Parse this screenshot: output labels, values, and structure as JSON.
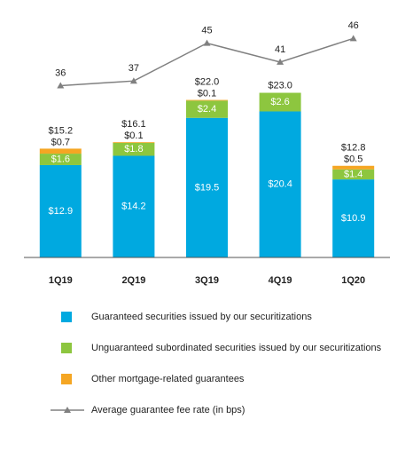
{
  "chart_data": {
    "type": "bar",
    "stacked": true,
    "categories": [
      "1Q19",
      "2Q19",
      "3Q19",
      "4Q19",
      "1Q20"
    ],
    "ylim": [
      0,
      31
    ],
    "y2lim": [
      0,
      47
    ],
    "series": [
      {
        "name": "Guaranteed securities issued by our securitizations",
        "color": "#00a9e0",
        "values": [
          12.9,
          14.2,
          19.5,
          20.4,
          10.9
        ],
        "value_labels": [
          "$12.9",
          "$14.2",
          "$19.5",
          "$20.4",
          "$10.9"
        ]
      },
      {
        "name": "Unguaranteed subordinated securities issued by our securitizations",
        "color": "#8dc63f",
        "values": [
          1.6,
          1.8,
          2.4,
          2.6,
          1.4
        ],
        "value_labels": [
          "$1.6",
          "$1.8",
          "$2.4",
          "$2.6",
          "$1.4"
        ]
      },
      {
        "name": "Other mortgage-related guarantees",
        "color": "#f5a623",
        "values": [
          0.7,
          0.1,
          0.1,
          null,
          0.5
        ],
        "value_labels": [
          "$0.7",
          "$0.1",
          "$0.1",
          null,
          "$0.5"
        ]
      },
      {
        "name": "Average guarantee fee rate (in bps)",
        "type": "line",
        "axis": "y2",
        "color": "#808080",
        "values": [
          36,
          37,
          45,
          41,
          46
        ]
      }
    ],
    "totals": {
      "values": [
        15.2,
        16.1,
        22.0,
        23.0,
        12.8
      ],
      "value_labels": [
        "$15.2",
        "$16.1",
        "$22.0",
        "$23.0",
        "$12.8"
      ]
    }
  }
}
